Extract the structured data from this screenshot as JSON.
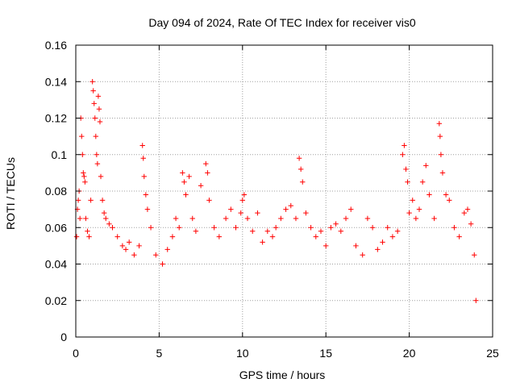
{
  "chart_data": {
    "type": "scatter",
    "title": "Day 094 of 2024, Rate Of TEC Index for receiver vis0",
    "xlabel": "GPS time / hours",
    "ylabel": "ROTI / TECUs",
    "xlim": [
      0,
      25
    ],
    "ylim": [
      0,
      0.16
    ],
    "x_ticks": [
      "0",
      "5",
      "10",
      "15",
      "20",
      "25"
    ],
    "y_ticks": [
      "0",
      "0.02",
      "0.04",
      "0.06",
      "0.08",
      "0.1",
      "0.12",
      "0.14",
      "0.16"
    ],
    "grid": true,
    "legend": "none",
    "marker": "plus",
    "color": "#ff0000",
    "series": [
      {
        "points": [
          [
            0.05,
            0.055
          ],
          [
            0.1,
            0.07
          ],
          [
            0.15,
            0.075
          ],
          [
            0.2,
            0.08
          ],
          [
            0.25,
            0.065
          ],
          [
            0.3,
            0.12
          ],
          [
            0.35,
            0.11
          ],
          [
            0.4,
            0.1
          ],
          [
            0.45,
            0.09
          ],
          [
            0.5,
            0.088
          ],
          [
            0.55,
            0.085
          ],
          [
            0.6,
            0.065
          ],
          [
            0.7,
            0.058
          ],
          [
            0.8,
            0.055
          ],
          [
            0.9,
            0.075
          ],
          [
            1.0,
            0.14
          ],
          [
            1.05,
            0.135
          ],
          [
            1.1,
            0.128
          ],
          [
            1.15,
            0.12
          ],
          [
            1.2,
            0.11
          ],
          [
            1.25,
            0.1
          ],
          [
            1.3,
            0.095
          ],
          [
            1.35,
            0.132
          ],
          [
            1.4,
            0.125
          ],
          [
            1.45,
            0.118
          ],
          [
            1.5,
            0.088
          ],
          [
            1.6,
            0.075
          ],
          [
            1.7,
            0.068
          ],
          [
            1.8,
            0.065
          ],
          [
            2.0,
            0.062
          ],
          [
            2.2,
            0.06
          ],
          [
            2.5,
            0.055
          ],
          [
            2.8,
            0.05
          ],
          [
            3.0,
            0.048
          ],
          [
            3.2,
            0.052
          ],
          [
            3.5,
            0.045
          ],
          [
            3.8,
            0.05
          ],
          [
            4.0,
            0.105
          ],
          [
            4.05,
            0.098
          ],
          [
            4.1,
            0.088
          ],
          [
            4.2,
            0.078
          ],
          [
            4.3,
            0.07
          ],
          [
            4.5,
            0.06
          ],
          [
            4.8,
            0.045
          ],
          [
            5.2,
            0.04
          ],
          [
            5.5,
            0.048
          ],
          [
            5.8,
            0.055
          ],
          [
            6.0,
            0.065
          ],
          [
            6.2,
            0.06
          ],
          [
            6.4,
            0.09
          ],
          [
            6.5,
            0.085
          ],
          [
            6.6,
            0.078
          ],
          [
            6.8,
            0.088
          ],
          [
            7.0,
            0.065
          ],
          [
            7.2,
            0.058
          ],
          [
            7.5,
            0.083
          ],
          [
            7.8,
            0.095
          ],
          [
            7.9,
            0.09
          ],
          [
            8.0,
            0.075
          ],
          [
            8.3,
            0.06
          ],
          [
            8.6,
            0.055
          ],
          [
            9.0,
            0.065
          ],
          [
            9.3,
            0.07
          ],
          [
            9.6,
            0.06
          ],
          [
            9.9,
            0.068
          ],
          [
            10.0,
            0.075
          ],
          [
            10.1,
            0.078
          ],
          [
            10.3,
            0.065
          ],
          [
            10.6,
            0.058
          ],
          [
            10.9,
            0.068
          ],
          [
            11.2,
            0.052
          ],
          [
            11.5,
            0.058
          ],
          [
            11.8,
            0.055
          ],
          [
            12.0,
            0.06
          ],
          [
            12.3,
            0.065
          ],
          [
            12.6,
            0.07
          ],
          [
            12.9,
            0.072
          ],
          [
            13.2,
            0.065
          ],
          [
            13.4,
            0.098
          ],
          [
            13.5,
            0.092
          ],
          [
            13.6,
            0.085
          ],
          [
            13.8,
            0.068
          ],
          [
            14.1,
            0.06
          ],
          [
            14.4,
            0.055
          ],
          [
            14.7,
            0.058
          ],
          [
            15.0,
            0.05
          ],
          [
            15.3,
            0.06
          ],
          [
            15.6,
            0.062
          ],
          [
            15.9,
            0.058
          ],
          [
            16.2,
            0.065
          ],
          [
            16.5,
            0.07
          ],
          [
            16.8,
            0.05
          ],
          [
            17.2,
            0.045
          ],
          [
            17.5,
            0.065
          ],
          [
            17.8,
            0.06
          ],
          [
            18.1,
            0.048
          ],
          [
            18.4,
            0.052
          ],
          [
            18.7,
            0.06
          ],
          [
            19.0,
            0.055
          ],
          [
            19.3,
            0.058
          ],
          [
            19.6,
            0.1
          ],
          [
            19.7,
            0.105
          ],
          [
            19.8,
            0.092
          ],
          [
            19.9,
            0.085
          ],
          [
            20.0,
            0.068
          ],
          [
            20.2,
            0.075
          ],
          [
            20.4,
            0.065
          ],
          [
            20.6,
            0.07
          ],
          [
            20.8,
            0.085
          ],
          [
            21.0,
            0.094
          ],
          [
            21.2,
            0.078
          ],
          [
            21.5,
            0.065
          ],
          [
            21.8,
            0.117
          ],
          [
            21.85,
            0.11
          ],
          [
            21.9,
            0.1
          ],
          [
            22.0,
            0.09
          ],
          [
            22.2,
            0.078
          ],
          [
            22.4,
            0.075
          ],
          [
            22.7,
            0.06
          ],
          [
            23.0,
            0.055
          ],
          [
            23.3,
            0.068
          ],
          [
            23.5,
            0.07
          ],
          [
            23.7,
            0.062
          ],
          [
            23.9,
            0.045
          ],
          [
            24.0,
            0.02
          ]
        ]
      }
    ]
  }
}
